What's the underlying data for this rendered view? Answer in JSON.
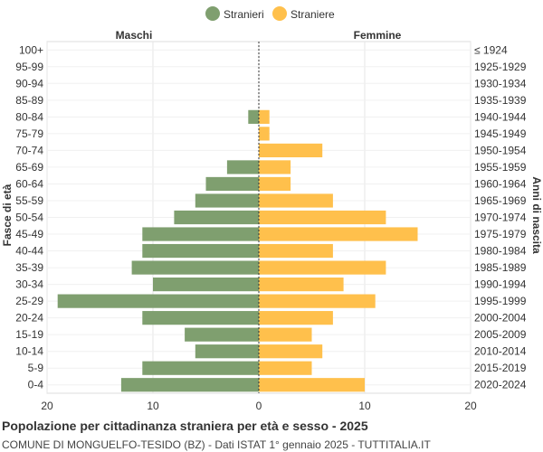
{
  "legend": {
    "male_label": "Stranieri",
    "female_label": "Straniere"
  },
  "headers": {
    "left": "Maschi",
    "right": "Femmine"
  },
  "colors": {
    "male": "#7f9f6f",
    "female": "#ffc04c"
  },
  "caption": {
    "title": "Popolazione per cittadinanza straniera per età e sesso - 2025",
    "subtitle": "COMUNE DI MONGUELFO-TESIDO (BZ) - Dati ISTAT 1° gennaio 2025 - TUTTITALIA.IT"
  },
  "chart_data": {
    "type": "bar",
    "orientation": "horizontal",
    "ylabel": "Fasce di età",
    "ylabel_right": "Anni di nascita",
    "xlim": [
      -20,
      20
    ],
    "x_ticks": [
      "20",
      "10",
      "0",
      "10",
      "20"
    ],
    "grid": true,
    "legend_position": "top-center",
    "categories": [
      "100+",
      "95-99",
      "90-94",
      "85-89",
      "80-84",
      "75-79",
      "70-74",
      "65-69",
      "60-64",
      "55-59",
      "50-54",
      "45-49",
      "40-44",
      "35-39",
      "30-34",
      "25-29",
      "20-24",
      "15-19",
      "10-14",
      "5-9",
      "0-4"
    ],
    "birth_years": [
      "≤ 1924",
      "1925-1929",
      "1930-1934",
      "1935-1939",
      "1940-1944",
      "1945-1949",
      "1950-1954",
      "1955-1959",
      "1960-1964",
      "1965-1969",
      "1970-1974",
      "1975-1979",
      "1980-1984",
      "1985-1989",
      "1990-1994",
      "1995-1999",
      "2000-2004",
      "2005-2009",
      "2010-2014",
      "2015-2019",
      "2020-2024"
    ],
    "series": [
      {
        "name": "Stranieri",
        "values": [
          0,
          0,
          0,
          0,
          1,
          0,
          0,
          3,
          5,
          6,
          8,
          11,
          11,
          12,
          10,
          19,
          11,
          7,
          6,
          11,
          13
        ]
      },
      {
        "name": "Straniere",
        "values": [
          0,
          0,
          0,
          0,
          1,
          1,
          6,
          3,
          3,
          7,
          12,
          15,
          7,
          12,
          8,
          11,
          7,
          5,
          6,
          5,
          10
        ]
      }
    ]
  }
}
